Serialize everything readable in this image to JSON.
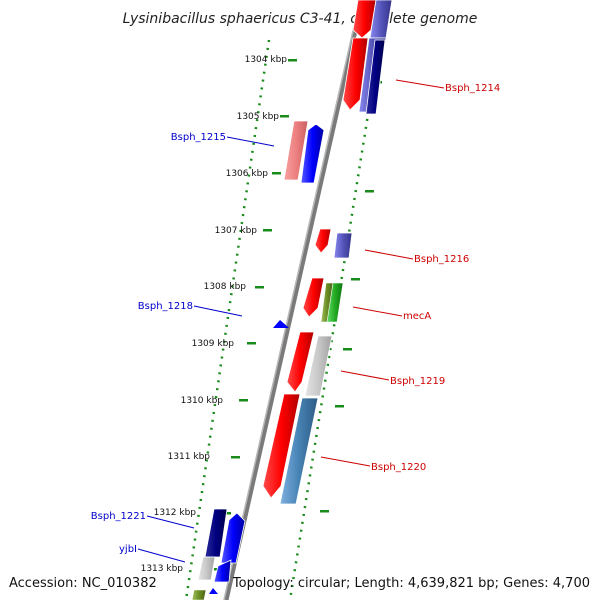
{
  "title": "Lysinibacillus sphaericus C3-41, complete genome",
  "accession": "Accession: NC_010382",
  "topology": "Topology: circular; Length: 4,639,821 bp; Genes: 4,700",
  "colors": {
    "backbone": "#808080",
    "tick": "#1a8a1a",
    "label_right": "#cc0000",
    "label_left": "#0000cc"
  },
  "kbp_ticks": [
    "1304 kbp",
    "1305 kbp",
    "1306 kbp",
    "1307 kbp",
    "1308 kbp",
    "1309 kbp",
    "1310 kbp",
    "1311 kbp",
    "1312 kbp",
    "1313 kbp"
  ],
  "gene_labels_right": [
    "Bsph_1214",
    "Bsph_1216",
    "mecA",
    "Bsph_1219",
    "Bsph_1220"
  ],
  "gene_labels_left": [
    "Bsph_1215",
    "Bsph_1218",
    "Bsph_1221",
    "yjbI"
  ]
}
